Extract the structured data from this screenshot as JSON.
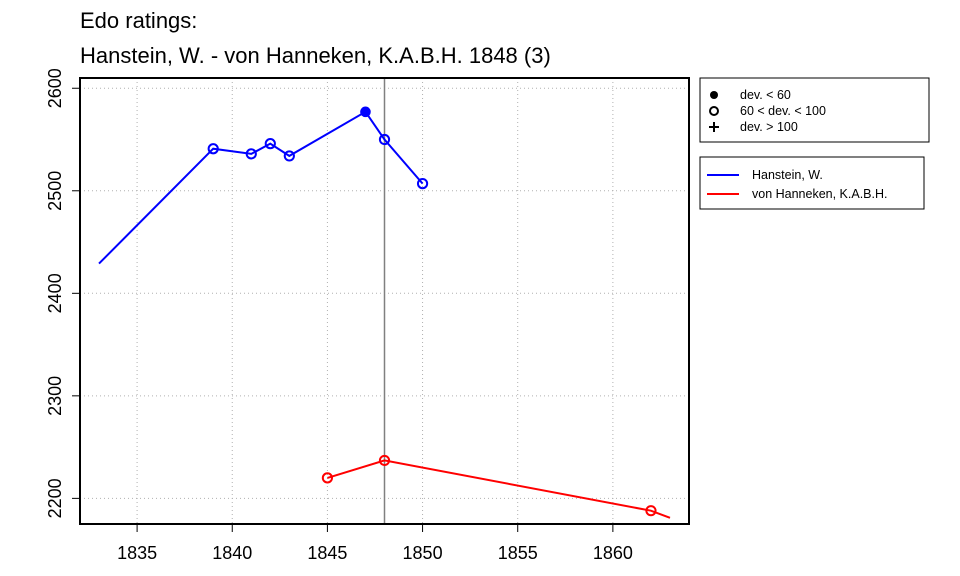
{
  "chart_data": {
    "type": "line",
    "title": [
      "Edo ratings:",
      "Hanstein, W. - von Hanneken, K.A.B.H. 1848 (3)"
    ],
    "xlim": [
      1832,
      1864
    ],
    "ylim": [
      2175,
      2610
    ],
    "x_ticks": [
      1835,
      1840,
      1845,
      1850,
      1855,
      1860
    ],
    "y_ticks": [
      2200,
      2300,
      2400,
      2500,
      2600
    ],
    "grid": true,
    "vline_x": 1848,
    "series": [
      {
        "name": "Hanstein, W.",
        "color": "#0000ff",
        "line": [
          [
            1833,
            2429
          ],
          [
            1839,
            2541
          ],
          [
            1841,
            2536
          ],
          [
            1842,
            2546
          ],
          [
            1843,
            2534
          ],
          [
            1847,
            2577
          ],
          [
            1848,
            2550
          ],
          [
            1850,
            2507
          ]
        ],
        "points": [
          {
            "x": 1839,
            "y": 2541,
            "dev": "mid"
          },
          {
            "x": 1841,
            "y": 2536,
            "dev": "mid"
          },
          {
            "x": 1842,
            "y": 2546,
            "dev": "mid"
          },
          {
            "x": 1843,
            "y": 2534,
            "dev": "mid"
          },
          {
            "x": 1847,
            "y": 2577,
            "dev": "low"
          },
          {
            "x": 1848,
            "y": 2550,
            "dev": "mid"
          },
          {
            "x": 1850,
            "y": 2507,
            "dev": "mid"
          }
        ]
      },
      {
        "name": "von Hanneken, K.A.B.H.",
        "color": "#ff0000",
        "line": [
          [
            1845,
            2220
          ],
          [
            1848,
            2237
          ],
          [
            1862,
            2188
          ],
          [
            1863,
            2181
          ]
        ],
        "points": [
          {
            "x": 1845,
            "y": 2220,
            "dev": "mid"
          },
          {
            "x": 1848,
            "y": 2237,
            "dev": "mid"
          },
          {
            "x": 1862,
            "y": 2188,
            "dev": "mid"
          }
        ]
      }
    ],
    "legend_symbols": {
      "placement": "right",
      "entries": [
        {
          "symbol": "filled-circle",
          "label": "dev. < 60"
        },
        {
          "symbol": "open-circle",
          "label": "60 < dev. < 100"
        },
        {
          "symbol": "plus",
          "label": "dev. > 100"
        }
      ]
    },
    "legend_series": {
      "placement": "right",
      "entries": [
        {
          "color": "#0000ff",
          "label": "Hanstein, W."
        },
        {
          "color": "#ff0000",
          "label": "von Hanneken, K.A.B.H."
        }
      ]
    }
  }
}
